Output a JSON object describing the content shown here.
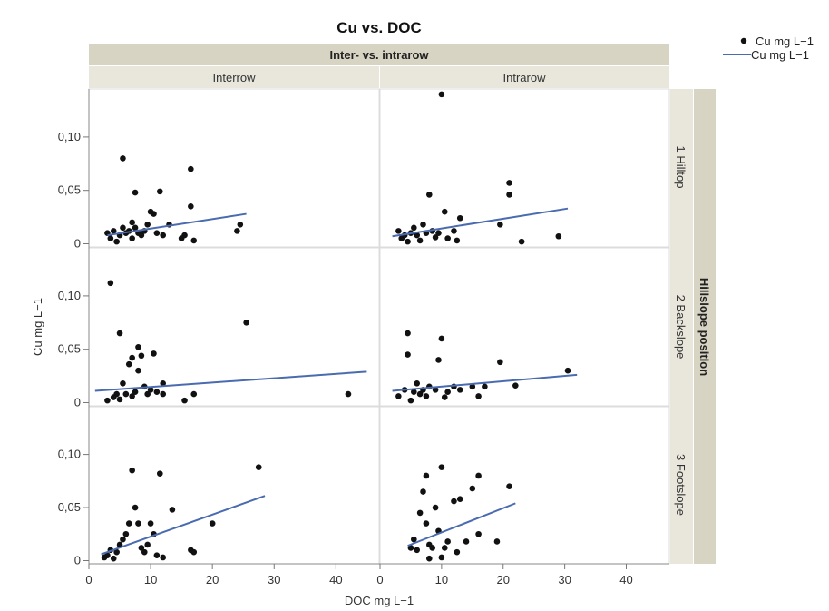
{
  "chart_data": {
    "type": "scatter",
    "title": "Cu vs. DOC",
    "column_group_label": "Inter- vs. intrarow",
    "row_group_label": "Hillslope position",
    "columns": [
      "Interrow",
      "Intrarow"
    ],
    "rows": [
      "1 Hilltop",
      "2 Backslope",
      "3 Footslope"
    ],
    "xlabel": "DOC mg L−1",
    "ylabel": "Cu mg L−1",
    "xlim": [
      0,
      47
    ],
    "ylim": [
      -0.003,
      0.145
    ],
    "x_ticks": [
      0,
      10,
      20,
      30,
      40
    ],
    "x_tick_labels": [
      "0",
      "10",
      "20",
      "30",
      "40"
    ],
    "y_ticks": [
      0,
      0.05,
      0.1
    ],
    "y_tick_labels": [
      "0",
      "0,05",
      "0,10"
    ],
    "grid": false,
    "legend": {
      "placement": "top-right",
      "entries": [
        {
          "label": "Cu mg L−1",
          "kind": "marker"
        },
        {
          "label": "Cu mg L−1",
          "kind": "line"
        }
      ]
    },
    "colors": {
      "points": "#111111",
      "fit_line": "#4a6bb0",
      "header_bg": "#d8d4c4",
      "header_sub_bg": "#e9e7dc"
    },
    "panels": [
      {
        "row": "1 Hilltop",
        "column": "Interrow",
        "fit_line": {
          "x": [
            3,
            25.5
          ],
          "y": [
            0.008,
            0.028
          ]
        },
        "points": [
          [
            3,
            0.01
          ],
          [
            3.5,
            0.005
          ],
          [
            4,
            0.012
          ],
          [
            4.5,
            0.002
          ],
          [
            5,
            0.008
          ],
          [
            5.5,
            0.08
          ],
          [
            5.5,
            0.015
          ],
          [
            6,
            0.01
          ],
          [
            6.5,
            0.012
          ],
          [
            7,
            0.02
          ],
          [
            7,
            0.005
          ],
          [
            7.5,
            0.048
          ],
          [
            7.5,
            0.015
          ],
          [
            8,
            0.01
          ],
          [
            8.5,
            0.008
          ],
          [
            9,
            0.012
          ],
          [
            9.5,
            0.018
          ],
          [
            10,
            0.03
          ],
          [
            10.5,
            0.028
          ],
          [
            11,
            0.01
          ],
          [
            11.5,
            0.049
          ],
          [
            12,
            0.008
          ],
          [
            13,
            0.018
          ],
          [
            15,
            0.005
          ],
          [
            15.5,
            0.008
          ],
          [
            16.5,
            0.07
          ],
          [
            16.5,
            0.035
          ],
          [
            17,
            0.003
          ],
          [
            24,
            0.012
          ],
          [
            24.5,
            0.018
          ]
        ]
      },
      {
        "row": "1 Hilltop",
        "column": "Intrarow",
        "fit_line": {
          "x": [
            2,
            30.5
          ],
          "y": [
            0.007,
            0.033
          ]
        },
        "points": [
          [
            3,
            0.012
          ],
          [
            3.5,
            0.005
          ],
          [
            4,
            0.008
          ],
          [
            4.5,
            0.002
          ],
          [
            5,
            0.01
          ],
          [
            5.5,
            0.015
          ],
          [
            6,
            0.008
          ],
          [
            6.5,
            0.003
          ],
          [
            7,
            0.018
          ],
          [
            7.5,
            0.01
          ],
          [
            8,
            0.046
          ],
          [
            8.5,
            0.012
          ],
          [
            9,
            0.006
          ],
          [
            9.5,
            0.01
          ],
          [
            10,
            0.14
          ],
          [
            10.5,
            0.03
          ],
          [
            11,
            0.005
          ],
          [
            12,
            0.012
          ],
          [
            12.5,
            0.003
          ],
          [
            13,
            0.024
          ],
          [
            19.5,
            0.018
          ],
          [
            21,
            0.057
          ],
          [
            21,
            0.046
          ],
          [
            23,
            0.002
          ],
          [
            29,
            0.007
          ]
        ]
      },
      {
        "row": "2 Backslope",
        "column": "Interrow",
        "fit_line": {
          "x": [
            1,
            45
          ],
          "y": [
            0.011,
            0.029
          ]
        },
        "points": [
          [
            3,
            0.002
          ],
          [
            3.5,
            0.112
          ],
          [
            4,
            0.005
          ],
          [
            4.5,
            0.008
          ],
          [
            5,
            0.065
          ],
          [
            5,
            0.003
          ],
          [
            5.5,
            0.018
          ],
          [
            6,
            0.008
          ],
          [
            6.5,
            0.036
          ],
          [
            7,
            0.042
          ],
          [
            7,
            0.006
          ],
          [
            7.5,
            0.01
          ],
          [
            8,
            0.052
          ],
          [
            8,
            0.03
          ],
          [
            8.5,
            0.044
          ],
          [
            9,
            0.015
          ],
          [
            9.5,
            0.008
          ],
          [
            10,
            0.012
          ],
          [
            10.5,
            0.046
          ],
          [
            11,
            0.01
          ],
          [
            12,
            0.018
          ],
          [
            12,
            0.008
          ],
          [
            15.5,
            0.002
          ],
          [
            17,
            0.008
          ],
          [
            25.5,
            0.075
          ],
          [
            42,
            0.008
          ]
        ]
      },
      {
        "row": "2 Backslope",
        "column": "Intrarow",
        "fit_line": {
          "x": [
            2,
            32
          ],
          "y": [
            0.011,
            0.026
          ]
        },
        "points": [
          [
            3,
            0.006
          ],
          [
            4,
            0.012
          ],
          [
            4.5,
            0.045
          ],
          [
            4.5,
            0.065
          ],
          [
            5,
            0.002
          ],
          [
            5.5,
            0.01
          ],
          [
            6,
            0.018
          ],
          [
            6.5,
            0.008
          ],
          [
            7,
            0.012
          ],
          [
            7.5,
            0.006
          ],
          [
            8,
            0.015
          ],
          [
            9,
            0.012
          ],
          [
            9.5,
            0.04
          ],
          [
            10,
            0.06
          ],
          [
            10.5,
            0.005
          ],
          [
            11,
            0.01
          ],
          [
            12,
            0.015
          ],
          [
            13,
            0.012
          ],
          [
            15,
            0.015
          ],
          [
            16,
            0.006
          ],
          [
            17,
            0.015
          ],
          [
            19.5,
            0.038
          ],
          [
            22,
            0.016
          ],
          [
            30.5,
            0.03
          ]
        ]
      },
      {
        "row": "3 Footslope",
        "column": "Interrow",
        "fit_line": {
          "x": [
            2,
            28.5
          ],
          "y": [
            0.006,
            0.061
          ]
        },
        "points": [
          [
            2.5,
            0.003
          ],
          [
            3,
            0.005
          ],
          [
            3.5,
            0.01
          ],
          [
            4,
            0.002
          ],
          [
            4.5,
            0.008
          ],
          [
            5,
            0.015
          ],
          [
            5.5,
            0.02
          ],
          [
            6,
            0.025
          ],
          [
            6.5,
            0.035
          ],
          [
            7,
            0.085
          ],
          [
            7.5,
            0.05
          ],
          [
            8,
            0.035
          ],
          [
            8.5,
            0.012
          ],
          [
            9,
            0.008
          ],
          [
            9.5,
            0.015
          ],
          [
            10,
            0.035
          ],
          [
            10.5,
            0.025
          ],
          [
            11,
            0.005
          ],
          [
            11.5,
            0.082
          ],
          [
            12,
            0.003
          ],
          [
            13.5,
            0.048
          ],
          [
            16.5,
            0.01
          ],
          [
            17,
            0.008
          ],
          [
            20,
            0.035
          ],
          [
            27.5,
            0.088
          ]
        ]
      },
      {
        "row": "3 Footslope",
        "column": "Intrarow",
        "fit_line": {
          "x": [
            4.5,
            22
          ],
          "y": [
            0.014,
            0.054
          ]
        },
        "points": [
          [
            5,
            0.012
          ],
          [
            5.5,
            0.02
          ],
          [
            6,
            0.01
          ],
          [
            6.5,
            0.045
          ],
          [
            7,
            0.065
          ],
          [
            7.5,
            0.08
          ],
          [
            7.5,
            0.035
          ],
          [
            8,
            0.015
          ],
          [
            8.5,
            0.012
          ],
          [
            9,
            0.05
          ],
          [
            9.5,
            0.028
          ],
          [
            10,
            0.088
          ],
          [
            10.5,
            0.012
          ],
          [
            11,
            0.018
          ],
          [
            12,
            0.056
          ],
          [
            12.5,
            0.008
          ],
          [
            13,
            0.058
          ],
          [
            14,
            0.018
          ],
          [
            15,
            0.068
          ],
          [
            16,
            0.08
          ],
          [
            16,
            0.025
          ],
          [
            19,
            0.018
          ],
          [
            21,
            0.07
          ],
          [
            8,
            0.002
          ],
          [
            10,
            0.003
          ]
        ]
      }
    ]
  }
}
